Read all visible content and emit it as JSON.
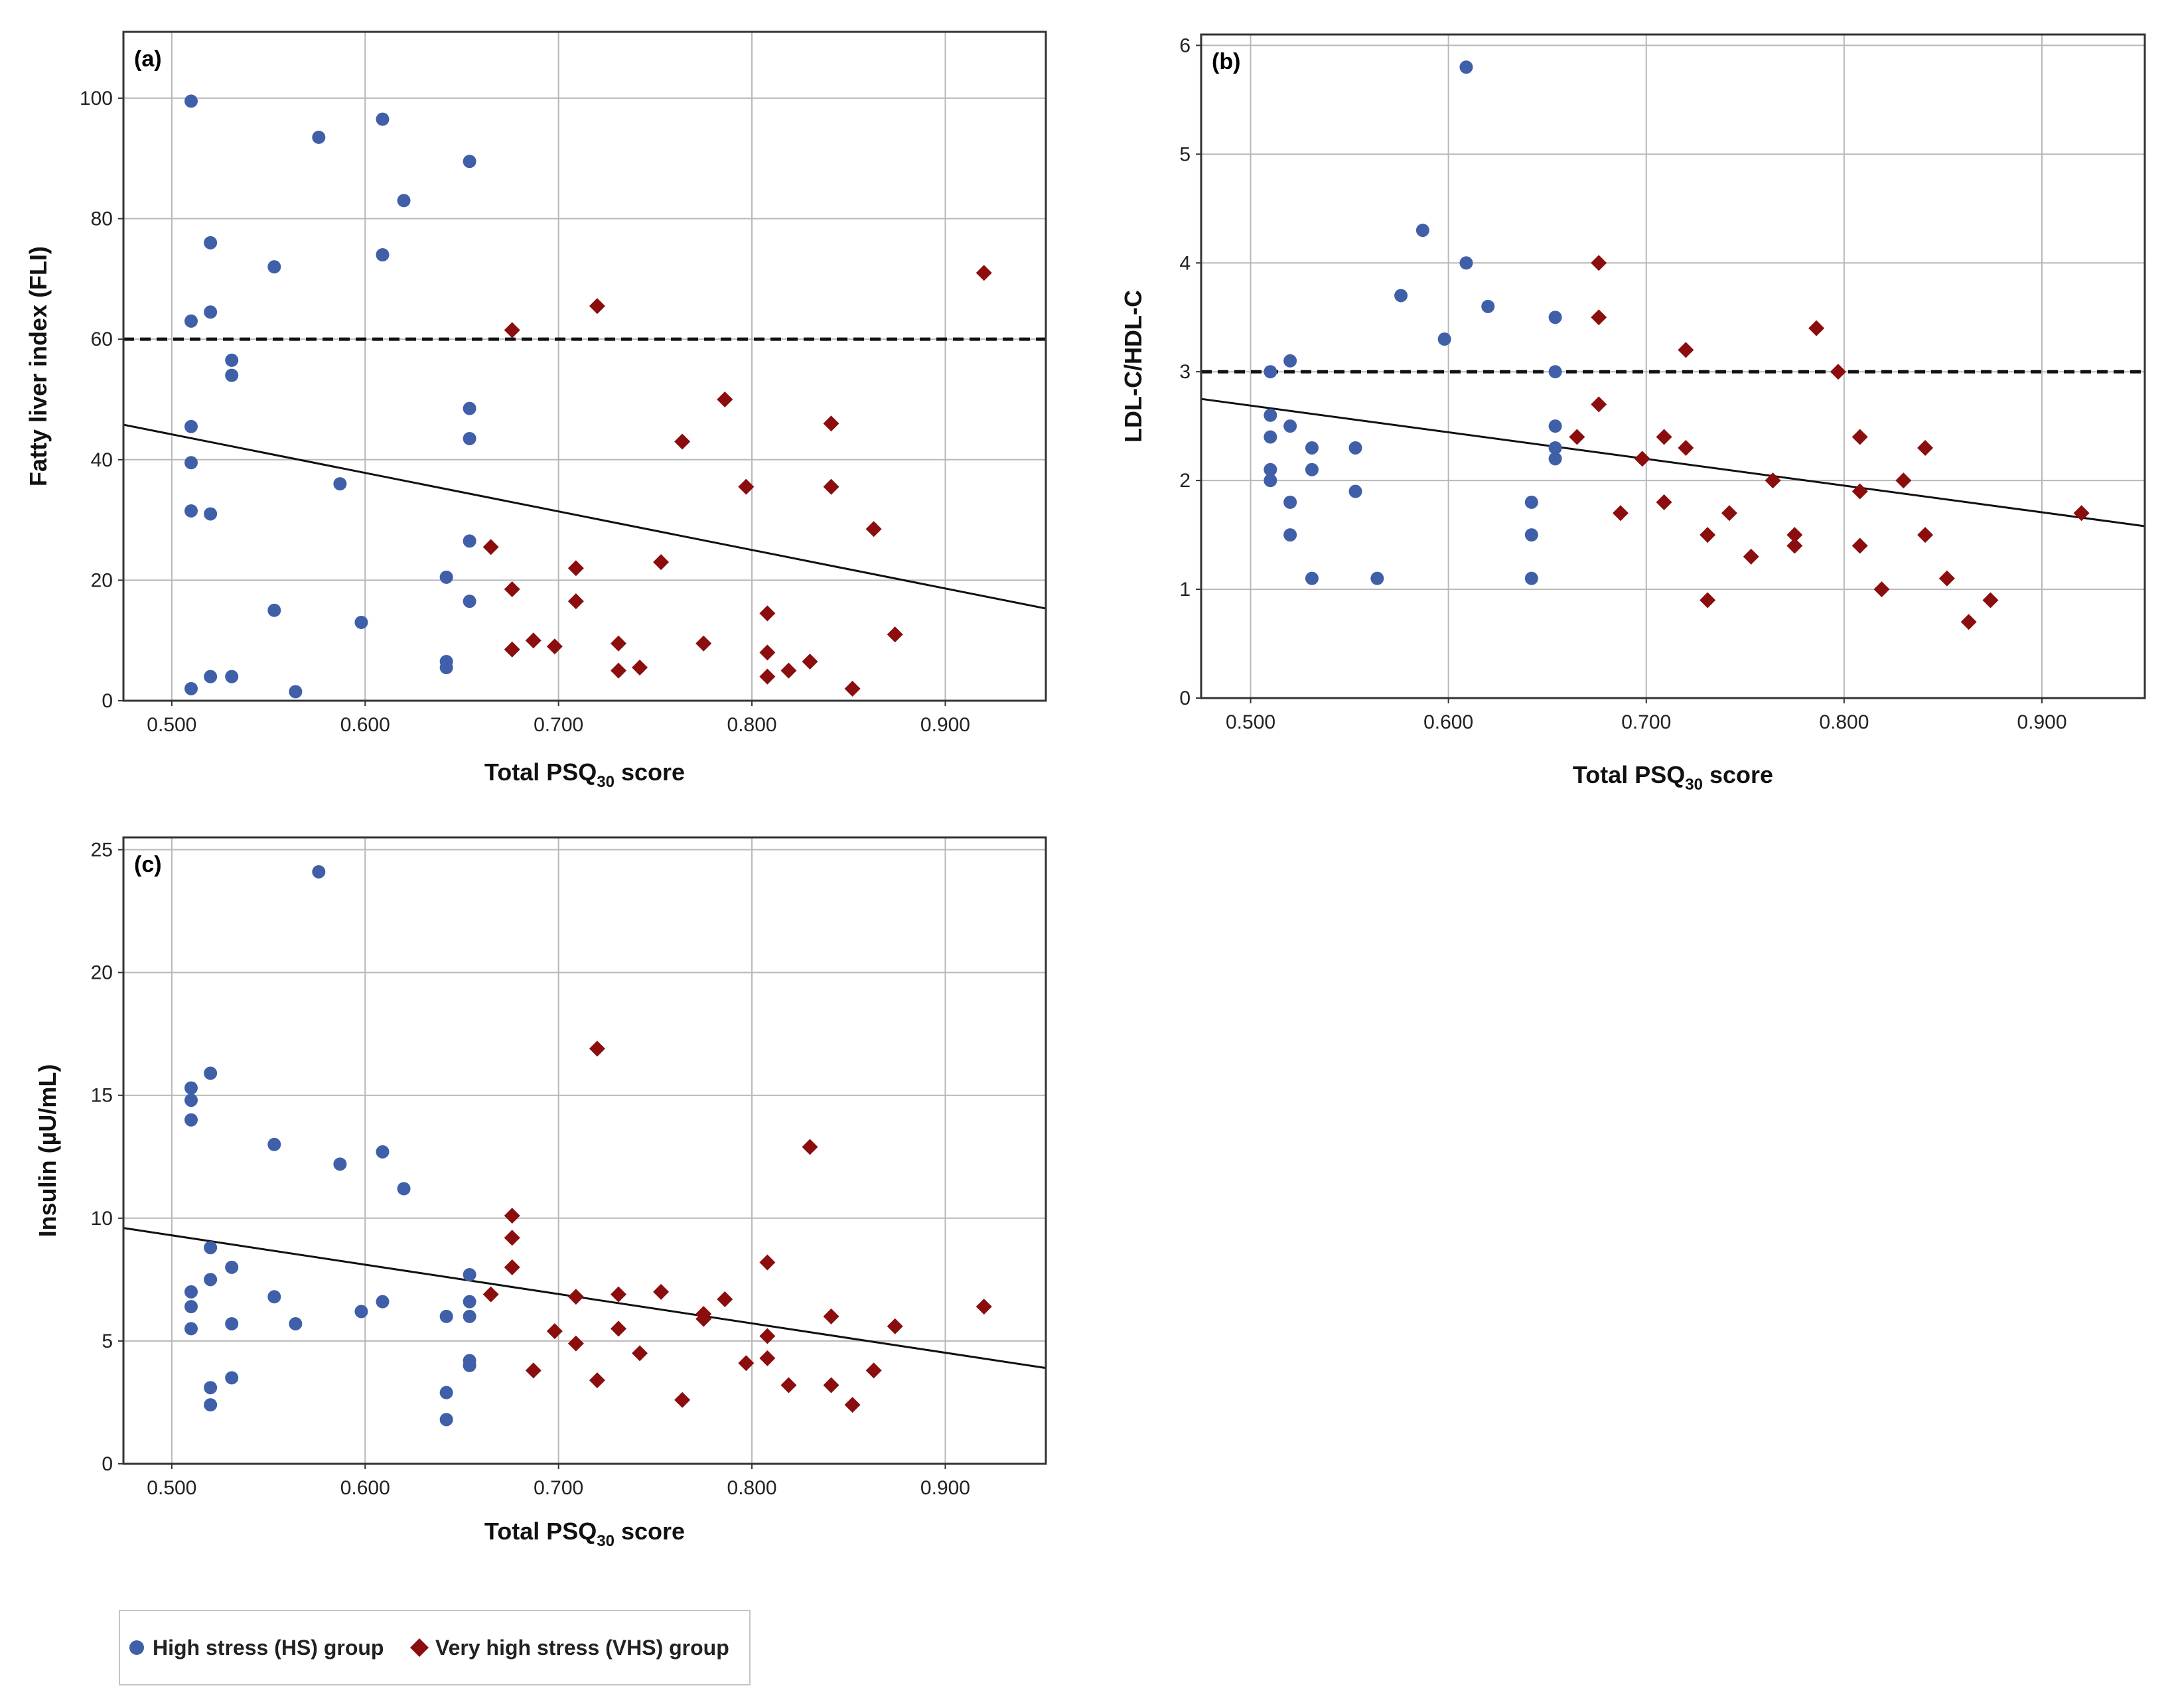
{
  "colors": {
    "hs": "#3f5fa8",
    "vhs": "#8b0d0d",
    "grid": "#b8b8b8",
    "frame": "#333333",
    "dash": "#111111",
    "fit": "#111111"
  },
  "legend": {
    "hs_label": "High stress (HS) group",
    "vhs_label": "Very high stress (VHS) group"
  },
  "chart_data": [
    {
      "type": "scatter",
      "panel_label": "(a)",
      "title": "",
      "xlabel": {
        "main": "Total PSQ",
        "sub": "30",
        "tail": " score"
      },
      "ylabel": "Fatty liver index (FLI)",
      "xlim": [
        0.475,
        0.952
      ],
      "ylim": [
        0,
        111
      ],
      "x_ticks": [
        0.5,
        0.6,
        0.7,
        0.8,
        0.9
      ],
      "x_tick_labels": [
        "0.500",
        "0.600",
        "0.700",
        "0.800",
        "0.900"
      ],
      "y_ticks": [
        0,
        20,
        40,
        60,
        80,
        100
      ],
      "y_tick_labels": [
        "0",
        "20",
        "40",
        "60",
        "80",
        "100"
      ],
      "reference_line_y": 60,
      "fit_line": {
        "x": [
          0.475,
          0.952
        ],
        "y": [
          45.8,
          15.3
        ]
      },
      "series": [
        {
          "name": "High stress (HS) group",
          "marker": "circle",
          "points": [
            [
              0.51,
              99.5
            ],
            [
              0.51,
              63
            ],
            [
              0.51,
              45.5
            ],
            [
              0.51,
              39.5
            ],
            [
              0.51,
              31.5
            ],
            [
              0.51,
              2
            ],
            [
              0.52,
              76
            ],
            [
              0.52,
              64.5
            ],
            [
              0.52,
              31
            ],
            [
              0.52,
              4
            ],
            [
              0.531,
              56.5
            ],
            [
              0.531,
              54
            ],
            [
              0.531,
              4
            ],
            [
              0.553,
              72
            ],
            [
              0.553,
              15
            ],
            [
              0.564,
              1.5
            ],
            [
              0.576,
              93.5
            ],
            [
              0.587,
              36
            ],
            [
              0.598,
              13
            ],
            [
              0.609,
              96.5
            ],
            [
              0.609,
              74
            ],
            [
              0.62,
              83
            ],
            [
              0.642,
              20.5
            ],
            [
              0.642,
              6.5
            ],
            [
              0.642,
              5.5
            ],
            [
              0.654,
              89.5
            ],
            [
              0.654,
              48.5
            ],
            [
              0.654,
              43.5
            ],
            [
              0.654,
              26.5
            ],
            [
              0.654,
              16.5
            ]
          ]
        },
        {
          "name": "Very high stress (VHS) group",
          "marker": "diamond",
          "points": [
            [
              0.665,
              25.5
            ],
            [
              0.676,
              61.5
            ],
            [
              0.676,
              18.5
            ],
            [
              0.676,
              8.5
            ],
            [
              0.687,
              10
            ],
            [
              0.698,
              9
            ],
            [
              0.709,
              22
            ],
            [
              0.709,
              16.5
            ],
            [
              0.72,
              65.5
            ],
            [
              0.731,
              9.5
            ],
            [
              0.731,
              5
            ],
            [
              0.742,
              5.5
            ],
            [
              0.753,
              23
            ],
            [
              0.764,
              43
            ],
            [
              0.775,
              9.5
            ],
            [
              0.786,
              50
            ],
            [
              0.797,
              35.5
            ],
            [
              0.808,
              14.5
            ],
            [
              0.808,
              8
            ],
            [
              0.808,
              4
            ],
            [
              0.819,
              5
            ],
            [
              0.83,
              6.5
            ],
            [
              0.841,
              46
            ],
            [
              0.841,
              35.5
            ],
            [
              0.852,
              2
            ],
            [
              0.863,
              28.5
            ],
            [
              0.874,
              11
            ],
            [
              0.92,
              71
            ]
          ]
        }
      ]
    },
    {
      "type": "scatter",
      "panel_label": "(b)",
      "title": "",
      "xlabel": {
        "main": "Total PSQ",
        "sub": "30",
        "tail": " score"
      },
      "ylabel": "LDL-C/HDL-C",
      "xlim": [
        0.475,
        0.952
      ],
      "ylim": [
        0,
        6.1
      ],
      "x_ticks": [
        0.5,
        0.6,
        0.7,
        0.8,
        0.9
      ],
      "x_tick_labels": [
        "0.500",
        "0.600",
        "0.700",
        "0.800",
        "0.900"
      ],
      "y_ticks": [
        0,
        1,
        2,
        3,
        4,
        5,
        6
      ],
      "y_tick_labels": [
        "0",
        "1",
        "2",
        "3",
        "4",
        "5",
        "6"
      ],
      "reference_line_y": 3,
      "fit_line": {
        "x": [
          0.475,
          0.952
        ],
        "y": [
          2.75,
          1.58
        ]
      },
      "series": [
        {
          "name": "High stress (HS) group",
          "marker": "circle",
          "points": [
            [
              0.51,
              3
            ],
            [
              0.51,
              2.6
            ],
            [
              0.51,
              2.4
            ],
            [
              0.51,
              2.1
            ],
            [
              0.51,
              2.0
            ],
            [
              0.52,
              3.1
            ],
            [
              0.52,
              2.5
            ],
            [
              0.52,
              1.8
            ],
            [
              0.52,
              1.5
            ],
            [
              0.531,
              2.3
            ],
            [
              0.531,
              2.1
            ],
            [
              0.531,
              1.1
            ],
            [
              0.553,
              2.3
            ],
            [
              0.553,
              1.9
            ],
            [
              0.564,
              1.1
            ],
            [
              0.576,
              3.7
            ],
            [
              0.587,
              4.3
            ],
            [
              0.598,
              3.3
            ],
            [
              0.609,
              5.8
            ],
            [
              0.609,
              4.0
            ],
            [
              0.62,
              3.6
            ],
            [
              0.642,
              1.8
            ],
            [
              0.642,
              1.5
            ],
            [
              0.642,
              1.1
            ],
            [
              0.654,
              3.5
            ],
            [
              0.654,
              3.0
            ],
            [
              0.654,
              2.5
            ],
            [
              0.654,
              2.3
            ],
            [
              0.654,
              2.2
            ]
          ]
        },
        {
          "name": "Very high stress (VHS) group",
          "marker": "diamond",
          "points": [
            [
              0.665,
              2.4
            ],
            [
              0.676,
              4.0
            ],
            [
              0.676,
              3.5
            ],
            [
              0.676,
              2.7
            ],
            [
              0.687,
              1.7
            ],
            [
              0.698,
              2.2
            ],
            [
              0.709,
              2.4
            ],
            [
              0.709,
              1.8
            ],
            [
              0.72,
              3.2
            ],
            [
              0.72,
              2.3
            ],
            [
              0.731,
              1.5
            ],
            [
              0.731,
              0.9
            ],
            [
              0.742,
              1.7
            ],
            [
              0.753,
              1.3
            ],
            [
              0.764,
              2.0
            ],
            [
              0.775,
              1.5
            ],
            [
              0.775,
              1.4
            ],
            [
              0.786,
              3.4
            ],
            [
              0.797,
              3.0
            ],
            [
              0.808,
              2.4
            ],
            [
              0.808,
              1.9
            ],
            [
              0.808,
              1.4
            ],
            [
              0.819,
              1.0
            ],
            [
              0.83,
              2.0
            ],
            [
              0.841,
              2.3
            ],
            [
              0.841,
              1.5
            ],
            [
              0.852,
              1.1
            ],
            [
              0.863,
              0.7
            ],
            [
              0.874,
              0.9
            ],
            [
              0.92,
              1.7
            ]
          ]
        }
      ]
    },
    {
      "type": "scatter",
      "panel_label": "(c)",
      "title": "",
      "xlabel": {
        "main": "Total PSQ",
        "sub": "30",
        "tail": " score"
      },
      "ylabel": "Insulin (µU/mL)",
      "xlim": [
        0.475,
        0.952
      ],
      "ylim": [
        0,
        25.5
      ],
      "x_ticks": [
        0.5,
        0.6,
        0.7,
        0.8,
        0.9
      ],
      "x_tick_labels": [
        "0.500",
        "0.600",
        "0.700",
        "0.800",
        "0.900"
      ],
      "y_ticks": [
        0,
        5,
        10,
        15,
        20,
        25
      ],
      "y_tick_labels": [
        "0",
        "5",
        "10",
        "15",
        "20",
        "25"
      ],
      "reference_line_y": null,
      "fit_line": {
        "x": [
          0.475,
          0.952
        ],
        "y": [
          9.6,
          3.9
        ]
      },
      "series": [
        {
          "name": "High stress (HS) group",
          "marker": "circle",
          "points": [
            [
              0.51,
              15.3
            ],
            [
              0.51,
              14.8
            ],
            [
              0.51,
              14.0
            ],
            [
              0.51,
              7.0
            ],
            [
              0.51,
              6.4
            ],
            [
              0.51,
              5.5
            ],
            [
              0.52,
              15.9
            ],
            [
              0.52,
              8.8
            ],
            [
              0.52,
              7.5
            ],
            [
              0.52,
              3.1
            ],
            [
              0.52,
              2.4
            ],
            [
              0.531,
              8.0
            ],
            [
              0.531,
              5.7
            ],
            [
              0.531,
              3.5
            ],
            [
              0.553,
              13.0
            ],
            [
              0.553,
              6.8
            ],
            [
              0.564,
              5.7
            ],
            [
              0.576,
              24.1
            ],
            [
              0.587,
              12.2
            ],
            [
              0.598,
              6.2
            ],
            [
              0.609,
              12.7
            ],
            [
              0.609,
              6.6
            ],
            [
              0.62,
              11.2
            ],
            [
              0.642,
              6.0
            ],
            [
              0.642,
              2.9
            ],
            [
              0.642,
              1.8
            ],
            [
              0.654,
              7.7
            ],
            [
              0.654,
              6.6
            ],
            [
              0.654,
              6.0
            ],
            [
              0.654,
              4.2
            ],
            [
              0.654,
              4.0
            ]
          ]
        },
        {
          "name": "Very high stress (VHS) group",
          "marker": "diamond",
          "points": [
            [
              0.665,
              6.9
            ],
            [
              0.676,
              10.1
            ],
            [
              0.676,
              9.2
            ],
            [
              0.676,
              8.0
            ],
            [
              0.687,
              3.8
            ],
            [
              0.698,
              5.4
            ],
            [
              0.709,
              6.8
            ],
            [
              0.709,
              4.9
            ],
            [
              0.72,
              16.9
            ],
            [
              0.72,
              3.4
            ],
            [
              0.731,
              6.9
            ],
            [
              0.731,
              5.5
            ],
            [
              0.742,
              4.5
            ],
            [
              0.753,
              7.0
            ],
            [
              0.764,
              2.6
            ],
            [
              0.775,
              6.1
            ],
            [
              0.775,
              5.9
            ],
            [
              0.786,
              6.7
            ],
            [
              0.797,
              4.1
            ],
            [
              0.808,
              8.2
            ],
            [
              0.808,
              5.2
            ],
            [
              0.808,
              4.3
            ],
            [
              0.819,
              3.2
            ],
            [
              0.83,
              12.9
            ],
            [
              0.841,
              6.0
            ],
            [
              0.841,
              3.2
            ],
            [
              0.852,
              2.4
            ],
            [
              0.863,
              3.8
            ],
            [
              0.874,
              5.6
            ],
            [
              0.92,
              6.4
            ]
          ]
        }
      ]
    }
  ]
}
